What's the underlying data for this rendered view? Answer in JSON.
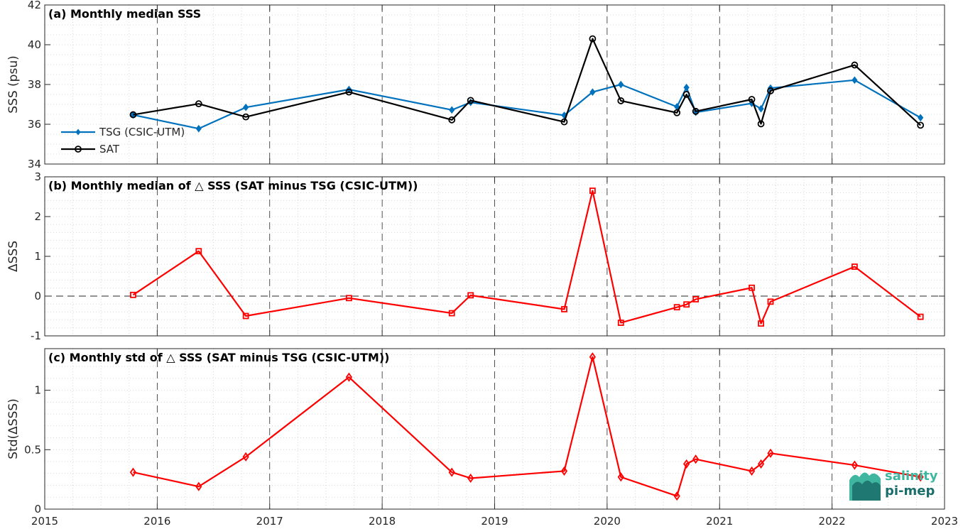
{
  "chart_data": [
    {
      "type": "line",
      "title": "(a) Monthly median SSS",
      "ylabel": "SSS (psu)",
      "xlim": [
        "2015-01-01",
        "2023-01-01"
      ],
      "ylim": [
        34,
        42
      ],
      "yticks": [
        34,
        36,
        38,
        40,
        42
      ],
      "legend_position": "left",
      "grid": true,
      "series": [
        {
          "name": "TSG (CSIC-UTM)",
          "color": "#0072BD",
          "marker": "diamond",
          "points": [
            [
              "2015-10-15",
              36.47
            ],
            [
              "2016-05-15",
              35.78
            ],
            [
              "2016-10-15",
              36.85
            ],
            [
              "2017-09-15",
              37.75
            ],
            [
              "2018-08-15",
              36.72
            ],
            [
              "2018-10-15",
              37.1
            ],
            [
              "2019-08-15",
              36.45
            ],
            [
              "2019-11-15",
              37.62
            ],
            [
              "2020-02-15",
              38.0
            ],
            [
              "2020-08-15",
              36.88
            ],
            [
              "2020-09-15",
              37.85
            ],
            [
              "2020-10-15",
              36.6
            ],
            [
              "2021-04-15",
              37.05
            ],
            [
              "2021-05-15",
              36.78
            ],
            [
              "2021-06-15",
              37.82
            ],
            [
              "2022-03-15",
              38.22
            ],
            [
              "2022-10-15",
              36.33
            ]
          ]
        },
        {
          "name": "SAT",
          "color": "#000000",
          "marker": "circle",
          "points": [
            [
              "2015-10-15",
              36.48
            ],
            [
              "2016-05-15",
              37.03
            ],
            [
              "2016-10-15",
              36.37
            ],
            [
              "2017-09-15",
              37.62
            ],
            [
              "2018-08-15",
              36.22
            ],
            [
              "2018-10-15",
              37.2
            ],
            [
              "2019-08-15",
              36.12
            ],
            [
              "2019-11-15",
              40.3
            ],
            [
              "2020-02-15",
              37.18
            ],
            [
              "2020-08-15",
              36.58
            ],
            [
              "2020-09-15",
              37.5
            ],
            [
              "2020-10-15",
              36.65
            ],
            [
              "2021-04-15",
              37.25
            ],
            [
              "2021-05-15",
              36.02
            ],
            [
              "2021-06-15",
              37.68
            ],
            [
              "2022-03-15",
              38.98
            ],
            [
              "2022-10-15",
              35.95
            ]
          ]
        }
      ]
    },
    {
      "type": "line",
      "title": "(b) Monthly median of △ SSS (SAT minus TSG (CSIC-UTM))",
      "ylabel": "ΔSSS",
      "xlim": [
        "2015-01-01",
        "2023-01-01"
      ],
      "ylim": [
        -1,
        3
      ],
      "yticks": [
        -1,
        0,
        1,
        2,
        3
      ],
      "zero_line": true,
      "grid": true,
      "series": [
        {
          "color": "#FF0000",
          "marker": "square",
          "points": [
            [
              "2015-10-15",
              0.03
            ],
            [
              "2016-05-15",
              1.13
            ],
            [
              "2016-10-15",
              -0.5
            ],
            [
              "2017-09-15",
              -0.05
            ],
            [
              "2018-08-15",
              -0.43
            ],
            [
              "2018-10-15",
              0.02
            ],
            [
              "2019-08-15",
              -0.33
            ],
            [
              "2019-11-15",
              2.65
            ],
            [
              "2020-02-15",
              -0.67
            ],
            [
              "2020-08-15",
              -0.28
            ],
            [
              "2020-09-15",
              -0.21
            ],
            [
              "2020-10-15",
              -0.08
            ],
            [
              "2021-04-15",
              0.21
            ],
            [
              "2021-05-15",
              -0.69
            ],
            [
              "2021-06-15",
              -0.14
            ],
            [
              "2022-03-15",
              0.74
            ],
            [
              "2022-10-15",
              -0.52
            ]
          ]
        }
      ]
    },
    {
      "type": "line",
      "title": "(c) Monthly std of △ SSS (SAT minus TSG (CSIC-UTM))",
      "ylabel": "Std(ΔSSS)",
      "xlim": [
        "2015-01-01",
        "2023-01-01"
      ],
      "ylim": [
        0,
        1.35
      ],
      "yticks": [
        0,
        0.5,
        1
      ],
      "xticks": [
        "2015",
        "2016",
        "2017",
        "2018",
        "2019",
        "2020",
        "2021",
        "2022",
        "2023"
      ],
      "grid": true,
      "series": [
        {
          "color": "#FF0000",
          "marker": "diamond",
          "points": [
            [
              "2015-10-15",
              0.31
            ],
            [
              "2016-05-15",
              0.19
            ],
            [
              "2016-10-15",
              0.44
            ],
            [
              "2017-09-15",
              1.11
            ],
            [
              "2018-08-15",
              0.31
            ],
            [
              "2018-10-15",
              0.26
            ],
            [
              "2019-08-15",
              0.32
            ],
            [
              "2019-11-15",
              1.28
            ],
            [
              "2020-02-15",
              0.27
            ],
            [
              "2020-08-15",
              0.11
            ],
            [
              "2020-09-15",
              0.38
            ],
            [
              "2020-10-15",
              0.42
            ],
            [
              "2021-04-15",
              0.32
            ],
            [
              "2021-05-15",
              0.38
            ],
            [
              "2021-06-15",
              0.47
            ],
            [
              "2022-03-15",
              0.37
            ],
            [
              "2022-10-15",
              0.27
            ]
          ]
        }
      ]
    }
  ],
  "logo": {
    "line1": "salinity",
    "line2": "pi-mep",
    "color_dark": "#1a6e6a",
    "color_light": "#3fb7a0"
  }
}
